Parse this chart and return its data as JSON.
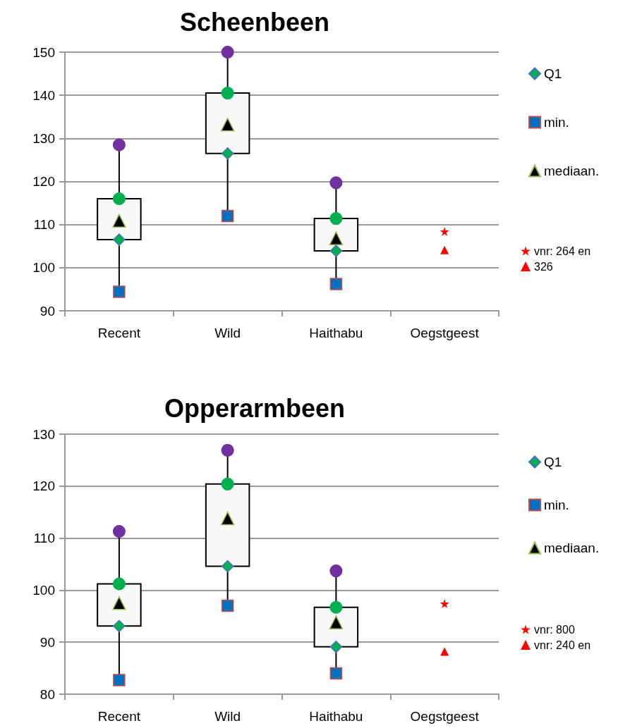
{
  "chart_data": [
    {
      "type": "box",
      "title": "Scheenbeen",
      "categories": [
        "Recent",
        "Wild",
        "Haithabu",
        "Oegstgeest"
      ],
      "boxes": [
        {
          "low": 94.4,
          "q1": 106.5,
          "q3": 116.0,
          "high": 128.5
        },
        {
          "low": 112.0,
          "q1": 126.5,
          "q3": 140.5,
          "high": 150.0
        },
        {
          "low": 96.2,
          "q1": 103.9,
          "q3": 111.4,
          "high": 119.7
        },
        null
      ],
      "series": [
        {
          "type": "scatter",
          "name": "Q1",
          "marker": "diamond",
          "color": "#00b050",
          "x": [
            "Recent",
            "Wild",
            "Haithabu"
          ],
          "values": [
            106.5,
            126.5,
            103.9
          ]
        },
        {
          "type": "scatter",
          "name": "min.",
          "marker": "square",
          "color": "#0070c0",
          "x": [
            "Recent",
            "Wild",
            "Haithabu"
          ],
          "values": [
            94.4,
            112.0,
            96.2
          ]
        },
        {
          "type": "scatter",
          "name": "mediaan.",
          "marker": "triangle",
          "color": "#000000",
          "x": [
            "Recent",
            "Wild",
            "Haithabu"
          ],
          "values": [
            110.9,
            133.2,
            106.8
          ]
        },
        {
          "type": "scatter",
          "marker": "circle",
          "color": "#00b050",
          "x": [
            "Recent",
            "Wild",
            "Haithabu"
          ],
          "values": [
            116.0,
            140.5,
            111.4
          ]
        },
        {
          "type": "scatter",
          "marker": "circle",
          "color": "#7030a0",
          "x": [
            "Recent",
            "Wild",
            "Haithabu"
          ],
          "values": [
            128.5,
            150.0,
            119.7
          ]
        },
        {
          "type": "scatter",
          "name": "vnr: 264 en",
          "marker": "star",
          "color": "#ff0000",
          "x": [
            "Oegstgeest"
          ],
          "values": [
            108.4
          ]
        },
        {
          "type": "scatter",
          "name": "326",
          "marker": "triangle",
          "color": "#ff0000",
          "x": [
            "Oegstgeest"
          ],
          "values": [
            104.1
          ]
        }
      ],
      "ylim": [
        90,
        150
      ],
      "yticks": [
        90,
        100,
        110,
        120,
        130,
        140,
        150
      ],
      "grid": "y",
      "legend": "right"
    },
    {
      "type": "box",
      "title": "Opperarmbeen",
      "categories": [
        "Recent",
        "Wild",
        "Haithabu",
        "Oegstgeest"
      ],
      "boxes": [
        {
          "low": 82.7,
          "q1": 93.1,
          "q3": 101.2,
          "high": 111.3
        },
        {
          "low": 97.0,
          "q1": 104.6,
          "q3": 120.4,
          "high": 126.9
        },
        {
          "low": 84.0,
          "q1": 89.1,
          "q3": 96.7,
          "high": 103.7
        },
        null
      ],
      "series": [
        {
          "type": "scatter",
          "name": "Q1",
          "marker": "diamond",
          "color": "#00b050",
          "x": [
            "Recent",
            "Wild",
            "Haithabu"
          ],
          "values": [
            93.1,
            104.6,
            89.1
          ]
        },
        {
          "type": "scatter",
          "name": "min.",
          "marker": "square",
          "color": "#0070c0",
          "x": [
            "Recent",
            "Wild",
            "Haithabu"
          ],
          "values": [
            82.7,
            97.0,
            84.0
          ]
        },
        {
          "type": "scatter",
          "name": "mediaan.",
          "marker": "triangle",
          "color": "#000000",
          "x": [
            "Recent",
            "Wild",
            "Haithabu"
          ],
          "values": [
            97.5,
            113.8,
            93.8
          ]
        },
        {
          "type": "scatter",
          "marker": "circle",
          "color": "#00b050",
          "x": [
            "Recent",
            "Wild",
            "Haithabu"
          ],
          "values": [
            101.2,
            120.4,
            96.7
          ]
        },
        {
          "type": "scatter",
          "marker": "circle",
          "color": "#7030a0",
          "x": [
            "Recent",
            "Wild",
            "Haithabu"
          ],
          "values": [
            111.3,
            126.9,
            103.7
          ]
        },
        {
          "type": "scatter",
          "name": "vnr: 800",
          "marker": "star",
          "color": "#ff0000",
          "x": [
            "Oegstgeest"
          ],
          "values": [
            97.4
          ]
        },
        {
          "type": "scatter",
          "name": "vnr: 240 en",
          "marker": "triangle",
          "color": "#ff0000",
          "x": [
            "Oegstgeest"
          ],
          "values": [
            88.2
          ]
        }
      ],
      "ylim": [
        80,
        130
      ],
      "yticks": [
        80,
        90,
        100,
        110,
        120,
        130
      ],
      "grid": "y",
      "legend": "right"
    }
  ]
}
